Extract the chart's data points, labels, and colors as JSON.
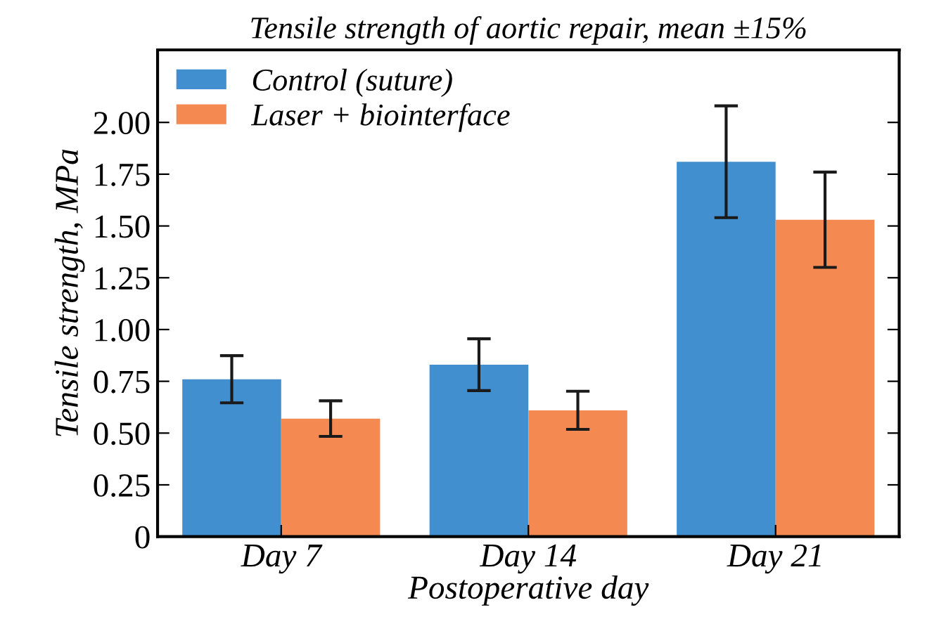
{
  "chart_data": {
    "type": "bar",
    "title": "Tensile strength of aortic repair, mean ±15%",
    "xlabel": "Postoperative day",
    "ylabel": "Tensile strength, MPa",
    "categories": [
      "Day 7",
      "Day 14",
      "Day 21"
    ],
    "series": [
      {
        "name": "Control (suture)",
        "color": "#428fcf",
        "values": [
          0.76,
          0.83,
          1.81
        ],
        "errors": [
          0.114,
          0.125,
          0.27
        ]
      },
      {
        "name": "Laser + biointerface",
        "color": "#f48a52",
        "values": [
          0.57,
          0.61,
          1.53
        ],
        "errors": [
          0.086,
          0.092,
          0.23
        ]
      }
    ],
    "ylim": [
      0,
      2.35
    ],
    "yticks": [
      {
        "value": 0,
        "label": "0"
      },
      0.25,
      {
        "value": 0.5,
        "label": "0.50"
      },
      {
        "value": 0.75,
        "label": "0.75"
      },
      {
        "value": 1.0,
        "label": "1.00"
      },
      1.25,
      {
        "value": 1.5,
        "label": "1.50"
      },
      1.75,
      {
        "value": 2.0,
        "label": "2.00"
      }
    ],
    "grid": false,
    "legend": "top left"
  }
}
